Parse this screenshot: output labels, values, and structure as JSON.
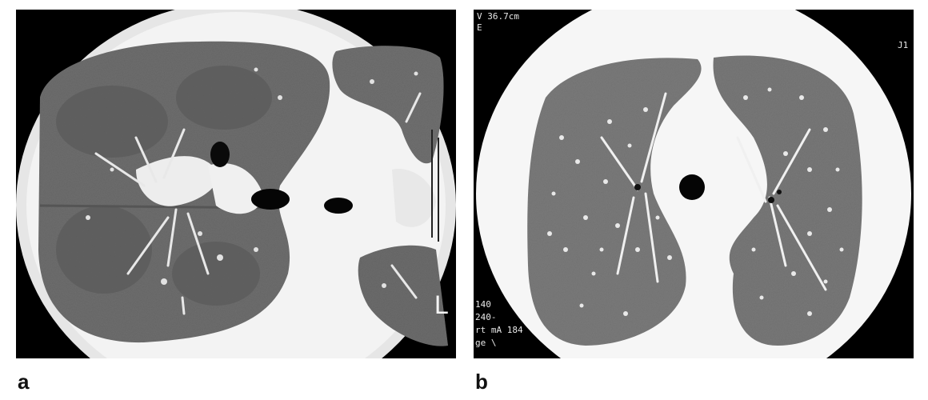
{
  "figure": {
    "panels": [
      {
        "label": "a",
        "orientation_marker": "L",
        "description": "axial chest CT, lung window, diffuse ground-glass opacity with mosaic attenuation"
      },
      {
        "label": "b",
        "overlay_text": {
          "top_left_1": "V 36.7cm",
          "top_left_2": "E",
          "top_right": "J1",
          "bottom_left": [
            "140",
            "240-",
            "rt mA 184",
            "ge \\"
          ]
        },
        "description": "axial chest CT, lung window, diffuse small nodules in both lungs"
      }
    ],
    "colors": {
      "lung_parenchyma_a": "#6f6f6f",
      "lung_parenchyma_b": "#7b7b7b",
      "soft_tissue": "#f2f2f2",
      "airway": "#050505",
      "background": "#000000"
    }
  }
}
